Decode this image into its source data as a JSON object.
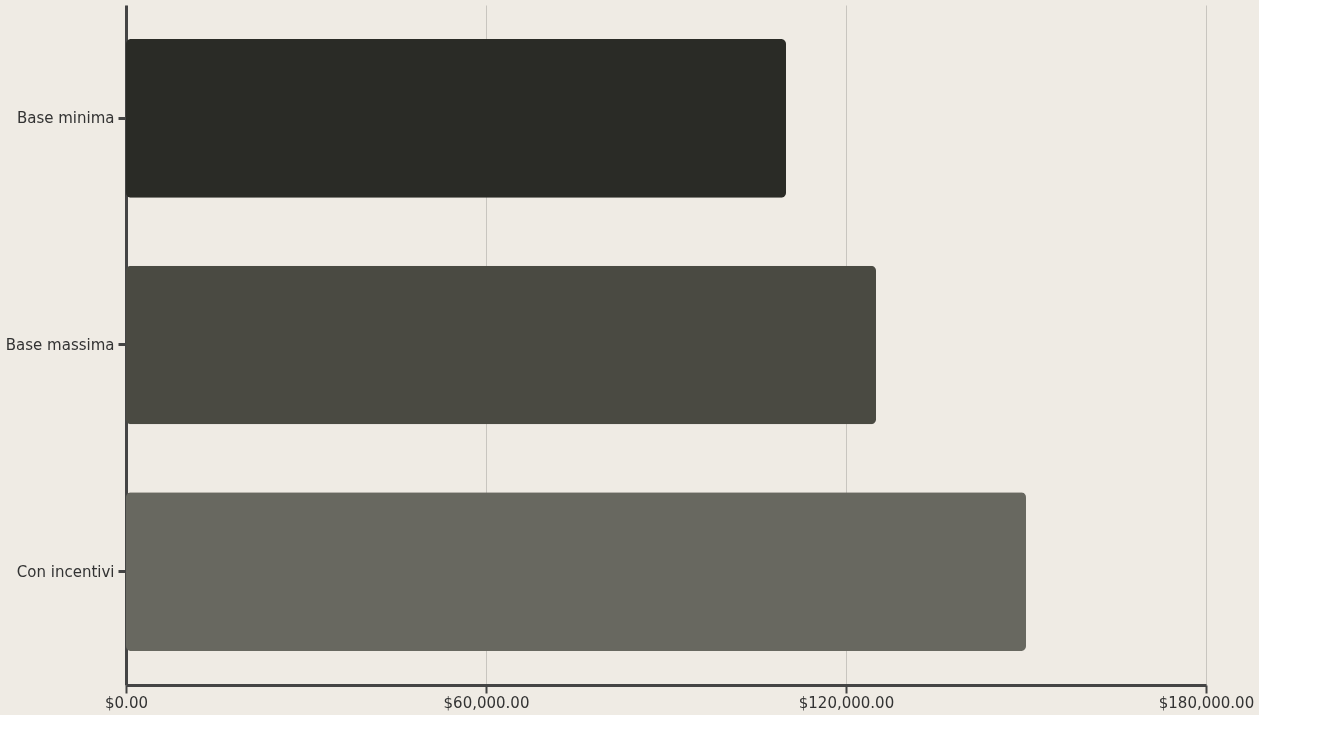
{
  "chart_data": {
    "type": "bar",
    "orientation": "horizontal",
    "categories": [
      "Base minima",
      "Base massima",
      "Con incentivi"
    ],
    "values": [
      110000,
      125000,
      150000
    ],
    "colors": [
      "#2a2b26",
      "#4a4a42",
      "#686860"
    ],
    "xlim": [
      0,
      180000
    ],
    "xticks": [
      {
        "value": 0,
        "label": "$0.00"
      },
      {
        "value": 60000,
        "label": "$60,000.00"
      },
      {
        "value": 120000,
        "label": "$120,000.00"
      },
      {
        "value": 180000,
        "label": "$180,000.00"
      }
    ],
    "grid": "x"
  }
}
